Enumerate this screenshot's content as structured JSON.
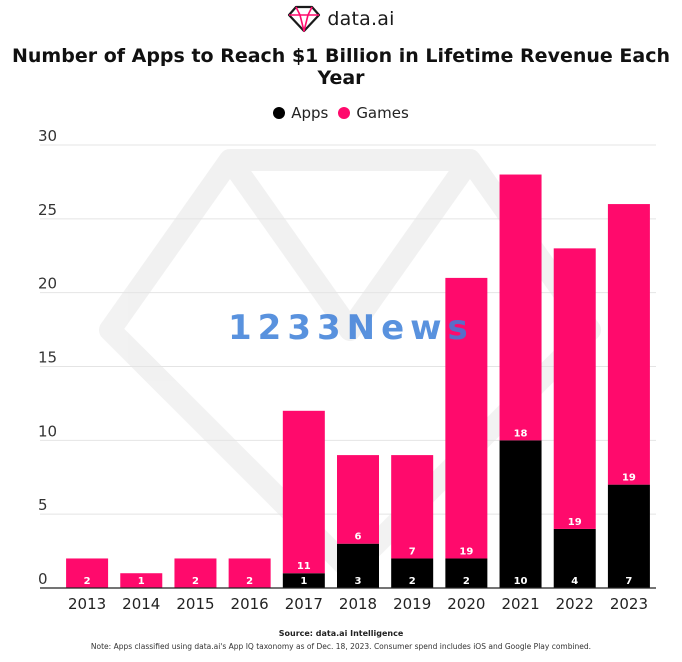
{
  "header": {
    "brand": "data.ai",
    "title": "Number of Apps to Reach $1 Billion in Lifetime Revenue Each Year"
  },
  "legend": [
    {
      "label": "Apps",
      "color": "#000000"
    },
    {
      "label": "Games",
      "color": "#ff0a6c"
    }
  ],
  "watermark_text": "1233News",
  "footer": {
    "source": "Source: data.ai Intelligence",
    "note": "Note: Apps classified using data.ai's App IQ taxonomy as of Dec. 18, 2023. Consumer spend includes iOS and Google Play combined."
  },
  "chart_data": {
    "type": "bar",
    "stacked": true,
    "title": "Number of Apps to Reach $1 Billion in Lifetime Revenue Each Year",
    "xlabel": "",
    "ylabel": "",
    "ylim": [
      0,
      30
    ],
    "yticks": [
      0,
      5,
      10,
      15,
      20,
      25,
      30
    ],
    "categories": [
      "2013",
      "2014",
      "2015",
      "2016",
      "2017",
      "2018",
      "2019",
      "2020",
      "2021",
      "2022",
      "2023"
    ],
    "series": [
      {
        "name": "Apps",
        "color": "#000000",
        "values": [
          0,
          0,
          0,
          0,
          1,
          3,
          2,
          2,
          10,
          4,
          7
        ]
      },
      {
        "name": "Games",
        "color": "#ff0a6c",
        "values": [
          2,
          1,
          2,
          2,
          11,
          6,
          7,
          19,
          18,
          19,
          19
        ]
      }
    ],
    "legend_position": "top-center",
    "grid": true
  }
}
